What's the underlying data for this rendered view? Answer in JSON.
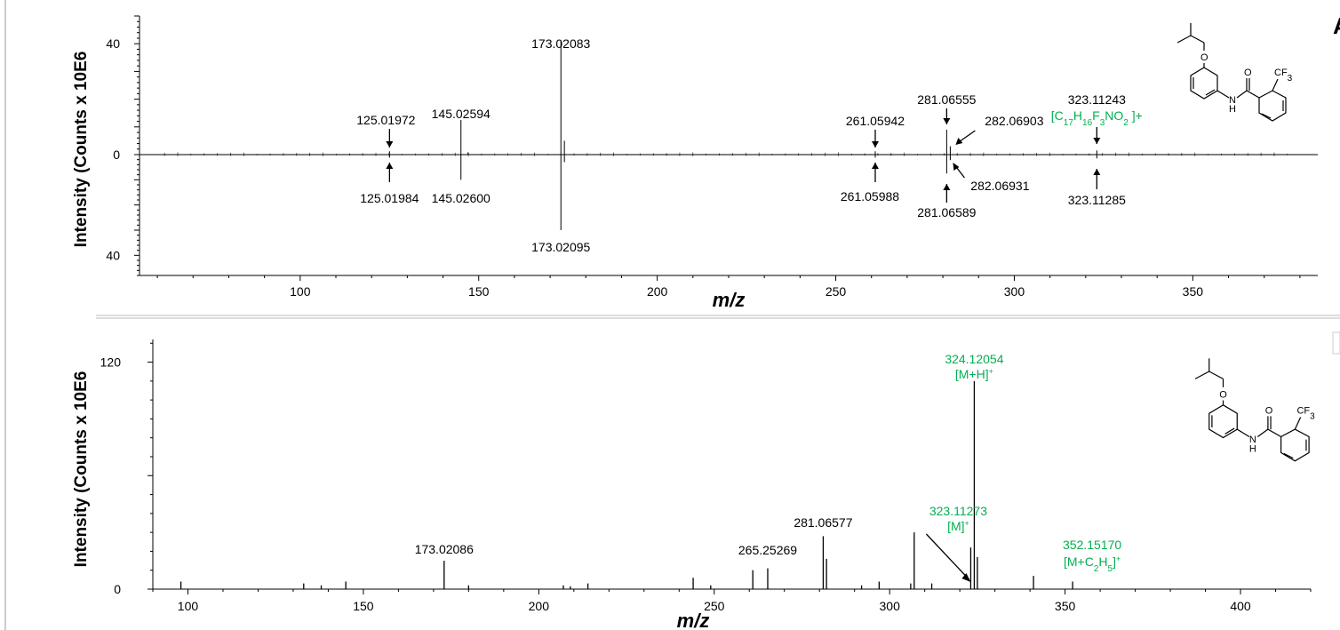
{
  "chart_data": [
    {
      "type": "mirror-spectrum",
      "panel_letter": "A",
      "ylabel": "Intensity (Counts x 10E6",
      "xlabel": "m/z",
      "xlim": [
        55,
        385
      ],
      "ylim_top": [
        0,
        50
      ],
      "ylim_bottom": [
        0,
        48
      ],
      "x_ticks": [
        100,
        150,
        200,
        250,
        300,
        350
      ],
      "y_ticks_top": [
        40,
        0
      ],
      "y_ticks_bottom": [
        40
      ],
      "top": [
        {
          "x": 125.01972,
          "y": 1.2,
          "label": "125.01972",
          "arrow": true
        },
        {
          "x": 145.02594,
          "y": 12.5,
          "label": "145.02594"
        },
        {
          "x": 147.0,
          "y": 0.8
        },
        {
          "x": 173.02083,
          "y": 41,
          "label": "173.02083"
        },
        {
          "x": 174.0,
          "y": 5
        },
        {
          "x": 261.05942,
          "y": 1.2,
          "label": "261.05942",
          "arrow": true
        },
        {
          "x": 281.06555,
          "y": 9,
          "label": "281.06555",
          "arrow": true
        },
        {
          "x": 282.06903,
          "y": 3,
          "label": "282.06903",
          "arrow": true
        },
        {
          "x": 323.11243,
          "y": 1.5,
          "label": "323.11243",
          "arrow": true
        }
      ],
      "top_formula": "[C17H16F3NO2 ]+",
      "bottom": [
        {
          "x": 125.01984,
          "y": 1.2,
          "label": "125.01984",
          "arrow": true
        },
        {
          "x": 145.026,
          "y": 10,
          "label": "145.02600"
        },
        {
          "x": 173.02095,
          "y": 30,
          "label": "173.02095"
        },
        {
          "x": 174.0,
          "y": 3
        },
        {
          "x": 261.05988,
          "y": 1.2,
          "label": "261.05988",
          "arrow": true
        },
        {
          "x": 281.06589,
          "y": 7.5,
          "label": "281.06589",
          "arrow": true
        },
        {
          "x": 282.06931,
          "y": 2.2,
          "label": "282.06931",
          "arrow": true
        },
        {
          "x": 323.11285,
          "y": 1.5,
          "label": "323.11285",
          "arrow": true
        }
      ],
      "structure_label": "CF3",
      "structure_atoms": [
        "O",
        "N",
        "H",
        "O"
      ]
    },
    {
      "type": "bar",
      "panel_letter": "B",
      "ylabel": "Intensity (Counts x 10E6",
      "xlabel": "m/z",
      "xlim": [
        90,
        420
      ],
      "ylim": [
        0,
        132
      ],
      "x_ticks": [
        100,
        150,
        200,
        250,
        300,
        350,
        400
      ],
      "y_ticks": [
        120,
        0
      ],
      "peaks": [
        {
          "x": 98,
          "y": 4
        },
        {
          "x": 133,
          "y": 3
        },
        {
          "x": 138,
          "y": 2
        },
        {
          "x": 145,
          "y": 4
        },
        {
          "x": 173.02086,
          "y": 15,
          "label": "173.02086"
        },
        {
          "x": 180,
          "y": 2
        },
        {
          "x": 207,
          "y": 2
        },
        {
          "x": 209,
          "y": 1.5
        },
        {
          "x": 214,
          "y": 3
        },
        {
          "x": 244,
          "y": 6
        },
        {
          "x": 249,
          "y": 2
        },
        {
          "x": 261,
          "y": 10
        },
        {
          "x": 265.25269,
          "y": 11,
          "label": "265.25269"
        },
        {
          "x": 281.06577,
          "y": 28,
          "label": "281.06577"
        },
        {
          "x": 282,
          "y": 16
        },
        {
          "x": 292,
          "y": 2
        },
        {
          "x": 297,
          "y": 4
        },
        {
          "x": 306,
          "y": 3
        },
        {
          "x": 307,
          "y": 30
        },
        {
          "x": 312,
          "y": 3
        },
        {
          "x": 323.11273,
          "y": 22,
          "label": "323.11273",
          "sublabel": "[M]+",
          "green": true
        },
        {
          "x": 324.12054,
          "y": 110,
          "label": "324.12054",
          "sublabel": "[M+H]+",
          "green": true
        },
        {
          "x": 325,
          "y": 17
        },
        {
          "x": 341,
          "y": 7
        },
        {
          "x": 352.1517,
          "y": 4,
          "label": "352.15170",
          "sublabel": "[M+C2H5]+",
          "green": true
        }
      ],
      "structure_label": "CF3",
      "structure_atoms": [
        "O",
        "N",
        "H",
        "O"
      ]
    }
  ]
}
